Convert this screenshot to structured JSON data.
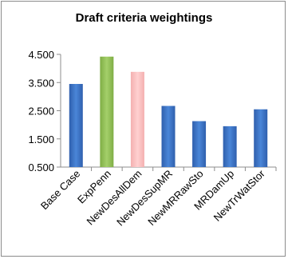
{
  "chart_data": {
    "type": "bar",
    "title": "Draft criteria weightings",
    "xlabel": "",
    "ylabel": "",
    "categories": [
      "Base Case",
      "ExpPenn",
      "NewDesAllDem",
      "NewDesSupMR",
      "NewMRRawSto",
      "MRDamUp",
      "NewTrWatStor"
    ],
    "values": [
      3.45,
      4.42,
      3.88,
      2.67,
      2.13,
      1.95,
      2.55
    ],
    "ylim": [
      0.5,
      4.5
    ],
    "yticks": [
      "0.500",
      "1.500",
      "2.500",
      "3.500",
      "4.500"
    ],
    "ytick_values": [
      0.5,
      1.5,
      2.5,
      3.5,
      4.5
    ],
    "grid": false,
    "legend": "none",
    "bar_colors": [
      "#3f74c4",
      "#94c25a",
      "#ffc2c2",
      "#3f74c4",
      "#3f74c4",
      "#3f74c4",
      "#3f74c4"
    ],
    "axis_color": "#8c8c8c"
  }
}
